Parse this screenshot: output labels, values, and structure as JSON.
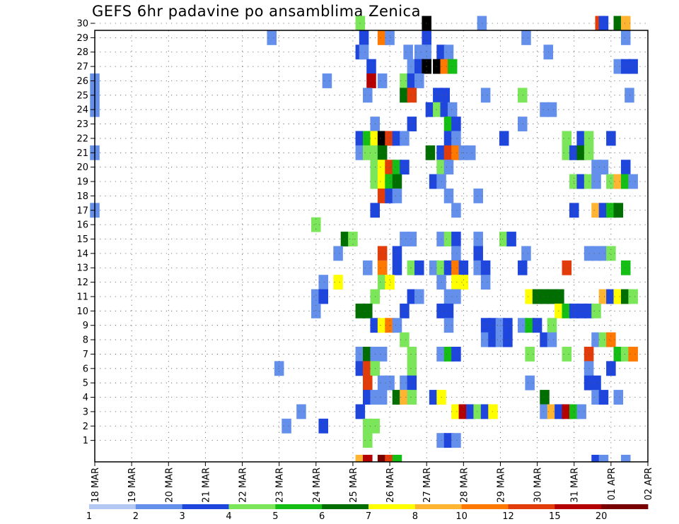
{
  "chart_data": {
    "type": "heatmap",
    "title": "GEFS 6hr padavine po ansamblima Zenica",
    "y_ticks": [
      "1",
      "2",
      "3",
      "4",
      "5",
      "6",
      "7",
      "8",
      "9",
      "10",
      "11",
      "12",
      "13",
      "14",
      "15",
      "16",
      "17",
      "18",
      "19",
      "20",
      "21",
      "22",
      "23",
      "24",
      "25",
      "26",
      "27",
      "28",
      "29",
      "30"
    ],
    "x_ticks": [
      "18 MAR",
      "19 MAR",
      "20 MAR",
      "21 MAR",
      "22 MAR",
      "23 MAR",
      "24 MAR",
      "25 MAR",
      "26 MAR",
      "27 MAR",
      "28 MAR",
      "29 MAR",
      "30 MAR",
      "31 MAR",
      "01 APR",
      "02 APR"
    ],
    "colorbar": {
      "labels": [
        "1",
        "2",
        "3",
        "4",
        "5",
        "6",
        "7",
        "8",
        "10",
        "12",
        "15",
        "20"
      ],
      "colors": [
        "#b4c8f4",
        "#6490ec",
        "#1e46dc",
        "#7ce65a",
        "#14be14",
        "#006e00",
        "#ffff00",
        "#ffb432",
        "#ff7800",
        "#e13c0a",
        "#b40000",
        "#780000"
      ]
    },
    "cells": [
      [
        25.2,
        30,
        3
      ],
      [
        27.0,
        30,
        12
      ],
      [
        28.5,
        30,
        1
      ],
      [
        31.7,
        30,
        9
      ],
      [
        31.8,
        30,
        2
      ],
      [
        32.2,
        30,
        5
      ],
      [
        32.4,
        30,
        7
      ],
      [
        22.8,
        29,
        1
      ],
      [
        25.3,
        29,
        2
      ],
      [
        25.8,
        29,
        8
      ],
      [
        26.0,
        29,
        1
      ],
      [
        27.0,
        29,
        2
      ],
      [
        29.7,
        29,
        1
      ],
      [
        32.4,
        29,
        1
      ],
      [
        25.2,
        28,
        2
      ],
      [
        25.3,
        28,
        1
      ],
      [
        26.5,
        28,
        1
      ],
      [
        26.8,
        28,
        1
      ],
      [
        27.0,
        28,
        1
      ],
      [
        27.4,
        28,
        2
      ],
      [
        27.6,
        28,
        1
      ],
      [
        30.3,
        28,
        1
      ],
      [
        25.5,
        27,
        2
      ],
      [
        26.6,
        27,
        1
      ],
      [
        26.8,
        27,
        2
      ],
      [
        27.0,
        27,
        12
      ],
      [
        27.3,
        27,
        12
      ],
      [
        27.5,
        27,
        8
      ],
      [
        27.7,
        27,
        4
      ],
      [
        32.2,
        27,
        1
      ],
      [
        32.4,
        27,
        2
      ],
      [
        32.6,
        27,
        2
      ],
      [
        18.0,
        26,
        1
      ],
      [
        24.3,
        26,
        1
      ],
      [
        25.5,
        26,
        10
      ],
      [
        25.8,
        26,
        1
      ],
      [
        26.4,
        26,
        3
      ],
      [
        26.6,
        26,
        2
      ],
      [
        26.8,
        26,
        1
      ],
      [
        18.0,
        25,
        1
      ],
      [
        25.4,
        25,
        1
      ],
      [
        26.4,
        25,
        5
      ],
      [
        26.6,
        25,
        9
      ],
      [
        27.3,
        25,
        2
      ],
      [
        27.5,
        25,
        2
      ],
      [
        28.6,
        25,
        1
      ],
      [
        29.6,
        25,
        3
      ],
      [
        32.5,
        25,
        1
      ],
      [
        18.0,
        24,
        1
      ],
      [
        27.1,
        24,
        2
      ],
      [
        27.3,
        24,
        3
      ],
      [
        27.5,
        24,
        2
      ],
      [
        27.7,
        24,
        1
      ],
      [
        30.2,
        24,
        1
      ],
      [
        30.4,
        24,
        1
      ],
      [
        25.6,
        23,
        1
      ],
      [
        26.6,
        23,
        2
      ],
      [
        27.6,
        23,
        4
      ],
      [
        27.8,
        23,
        2
      ],
      [
        29.6,
        23,
        1
      ],
      [
        25.2,
        22,
        2
      ],
      [
        25.4,
        22,
        4
      ],
      [
        25.6,
        22,
        6
      ],
      [
        25.8,
        22,
        12
      ],
      [
        26.0,
        22,
        9
      ],
      [
        26.2,
        22,
        2
      ],
      [
        26.4,
        22,
        1
      ],
      [
        27.6,
        22,
        2
      ],
      [
        27.8,
        22,
        1
      ],
      [
        29.1,
        22,
        2
      ],
      [
        30.8,
        22,
        3
      ],
      [
        31.2,
        22,
        2
      ],
      [
        31.4,
        22,
        3
      ],
      [
        32.0,
        22,
        2
      ],
      [
        18.0,
        21,
        1
      ],
      [
        25.2,
        21,
        1
      ],
      [
        25.4,
        21,
        3
      ],
      [
        25.6,
        21,
        3
      ],
      [
        25.8,
        21,
        5
      ],
      [
        27.1,
        21,
        5
      ],
      [
        27.4,
        21,
        2
      ],
      [
        27.6,
        21,
        9
      ],
      [
        27.8,
        21,
        8
      ],
      [
        28.0,
        21,
        1
      ],
      [
        28.2,
        21,
        1
      ],
      [
        30.8,
        21,
        3
      ],
      [
        31.0,
        21,
        2
      ],
      [
        31.2,
        21,
        5
      ],
      [
        31.4,
        21,
        3
      ],
      [
        25.6,
        20,
        3
      ],
      [
        25.8,
        20,
        6
      ],
      [
        26.0,
        20,
        9
      ],
      [
        26.2,
        20,
        4
      ],
      [
        26.4,
        20,
        2
      ],
      [
        27.4,
        20,
        3
      ],
      [
        27.6,
        20,
        1
      ],
      [
        31.6,
        20,
        1
      ],
      [
        31.8,
        20,
        1
      ],
      [
        32.4,
        20,
        2
      ],
      [
        25.6,
        19,
        3
      ],
      [
        25.8,
        19,
        6
      ],
      [
        26.0,
        19,
        4
      ],
      [
        26.2,
        19,
        5
      ],
      [
        27.2,
        19,
        2
      ],
      [
        27.4,
        19,
        1
      ],
      [
        31.0,
        19,
        3
      ],
      [
        31.2,
        19,
        2
      ],
      [
        31.4,
        19,
        3
      ],
      [
        31.6,
        19,
        1
      ],
      [
        32.0,
        19,
        3
      ],
      [
        32.2,
        19,
        7
      ],
      [
        32.4,
        19,
        4
      ],
      [
        32.6,
        19,
        1
      ],
      [
        25.8,
        18,
        9
      ],
      [
        26.0,
        18,
        2
      ],
      [
        26.2,
        18,
        1
      ],
      [
        27.6,
        18,
        1
      ],
      [
        28.4,
        18,
        1
      ],
      [
        18.0,
        17,
        1
      ],
      [
        25.6,
        17,
        2
      ],
      [
        27.8,
        17,
        1
      ],
      [
        31.0,
        17,
        2
      ],
      [
        31.6,
        17,
        7
      ],
      [
        31.8,
        17,
        2
      ],
      [
        32.0,
        17,
        4
      ],
      [
        32.2,
        17,
        5
      ],
      [
        24.0,
        16,
        3
      ],
      [
        24.8,
        15,
        5
      ],
      [
        25.0,
        15,
        3
      ],
      [
        26.4,
        15,
        1
      ],
      [
        26.6,
        15,
        1
      ],
      [
        27.4,
        15,
        1
      ],
      [
        27.6,
        15,
        3
      ],
      [
        27.8,
        15,
        2
      ],
      [
        28.4,
        15,
        1
      ],
      [
        29.1,
        15,
        3
      ],
      [
        29.3,
        15,
        2
      ],
      [
        24.6,
        14,
        1
      ],
      [
        25.8,
        14,
        9
      ],
      [
        26.2,
        14,
        2
      ],
      [
        27.8,
        14,
        1
      ],
      [
        28.4,
        14,
        2
      ],
      [
        29.7,
        14,
        1
      ],
      [
        31.4,
        14,
        1
      ],
      [
        31.6,
        14,
        1
      ],
      [
        31.8,
        14,
        1
      ],
      [
        32.0,
        14,
        3
      ],
      [
        25.4,
        13,
        1
      ],
      [
        25.8,
        13,
        1
      ],
      [
        26.2,
        13,
        2
      ],
      [
        27.6,
        13,
        3
      ],
      [
        27.8,
        13,
        2
      ],
      [
        25.8,
        13,
        8
      ],
      [
        26.6,
        13,
        3
      ],
      [
        26.8,
        13,
        2
      ],
      [
        27.2,
        13,
        1
      ],
      [
        27.4,
        13,
        3
      ],
      [
        27.6,
        13,
        2
      ],
      [
        27.8,
        13,
        8
      ],
      [
        28.0,
        13,
        2
      ],
      [
        28.4,
        13,
        1
      ],
      [
        28.6,
        13,
        2
      ],
      [
        29.6,
        13,
        2
      ],
      [
        30.8,
        13,
        9
      ],
      [
        32.4,
        13,
        4
      ],
      [
        24.2,
        12,
        1
      ],
      [
        24.6,
        12,
        6
      ],
      [
        25.8,
        12,
        3
      ],
      [
        26.0,
        12,
        6
      ],
      [
        27.4,
        12,
        1
      ],
      [
        27.8,
        12,
        6
      ],
      [
        28.0,
        12,
        6
      ],
      [
        28.6,
        12,
        1
      ],
      [
        24.0,
        11,
        1
      ],
      [
        24.2,
        11,
        2
      ],
      [
        25.6,
        11,
        3
      ],
      [
        26.6,
        11,
        2
      ],
      [
        26.8,
        11,
        1
      ],
      [
        27.6,
        11,
        1
      ],
      [
        27.8,
        11,
        1
      ],
      [
        29.8,
        11,
        6
      ],
      [
        30.0,
        11,
        5
      ],
      [
        30.2,
        11,
        5
      ],
      [
        30.4,
        11,
        5
      ],
      [
        30.6,
        11,
        5
      ],
      [
        31.8,
        11,
        7
      ],
      [
        32.0,
        11,
        2
      ],
      [
        32.2,
        11,
        6
      ],
      [
        32.4,
        11,
        5
      ],
      [
        32.6,
        11,
        3
      ],
      [
        24.0,
        10,
        1
      ],
      [
        25.2,
        10,
        5
      ],
      [
        25.4,
        10,
        5
      ],
      [
        26.4,
        10,
        2
      ],
      [
        27.4,
        10,
        2
      ],
      [
        27.6,
        10,
        2
      ],
      [
        30.6,
        10,
        6
      ],
      [
        30.8,
        10,
        4
      ],
      [
        31.0,
        10,
        2
      ],
      [
        31.2,
        10,
        2
      ],
      [
        31.4,
        10,
        2
      ],
      [
        31.6,
        10,
        3
      ],
      [
        25.6,
        9,
        2
      ],
      [
        25.8,
        9,
        6
      ],
      [
        26.0,
        9,
        8
      ],
      [
        26.2,
        9,
        1
      ],
      [
        27.6,
        9,
        1
      ],
      [
        28.6,
        9,
        2
      ],
      [
        28.8,
        9,
        2
      ],
      [
        29.0,
        9,
        1
      ],
      [
        29.2,
        9,
        2
      ],
      [
        29.6,
        9,
        1
      ],
      [
        29.8,
        9,
        4
      ],
      [
        30.0,
        9,
        2
      ],
      [
        30.4,
        9,
        3
      ],
      [
        26.4,
        8,
        3
      ],
      [
        28.6,
        8,
        1
      ],
      [
        28.8,
        8,
        2
      ],
      [
        29.0,
        8,
        1
      ],
      [
        29.2,
        8,
        2
      ],
      [
        30.2,
        8,
        2
      ],
      [
        30.4,
        8,
        1
      ],
      [
        31.6,
        8,
        1
      ],
      [
        31.8,
        8,
        3
      ],
      [
        32.0,
        8,
        8
      ],
      [
        25.2,
        7,
        1
      ],
      [
        25.4,
        7,
        5
      ],
      [
        25.6,
        7,
        1
      ],
      [
        25.8,
        7,
        1
      ],
      [
        26.6,
        7,
        3
      ],
      [
        27.4,
        7,
        1
      ],
      [
        27.6,
        7,
        4
      ],
      [
        27.8,
        7,
        2
      ],
      [
        29.8,
        7,
        3
      ],
      [
        30.8,
        7,
        3
      ],
      [
        31.4,
        7,
        9
      ],
      [
        32.2,
        7,
        4
      ],
      [
        32.4,
        7,
        3
      ],
      [
        32.6,
        7,
        8
      ],
      [
        23.0,
        6,
        1
      ],
      [
        25.2,
        6,
        2
      ],
      [
        25.4,
        6,
        9
      ],
      [
        25.6,
        6,
        3
      ],
      [
        26.6,
        6,
        3
      ],
      [
        31.4,
        6,
        1
      ],
      [
        32.0,
        6,
        2
      ],
      [
        25.4,
        5,
        9
      ],
      [
        25.8,
        5,
        1
      ],
      [
        26.0,
        5,
        1
      ],
      [
        26.4,
        5,
        1
      ],
      [
        26.6,
        5,
        2
      ],
      [
        29.8,
        5,
        1
      ],
      [
        31.4,
        5,
        2
      ],
      [
        31.6,
        5,
        2
      ],
      [
        25.4,
        4,
        2
      ],
      [
        25.6,
        4,
        1
      ],
      [
        25.8,
        4,
        1
      ],
      [
        26.2,
        4,
        5
      ],
      [
        26.4,
        4,
        7
      ],
      [
        26.6,
        4,
        3
      ],
      [
        27.2,
        4,
        2
      ],
      [
        27.4,
        4,
        6
      ],
      [
        30.2,
        4,
        5
      ],
      [
        31.6,
        4,
        1
      ],
      [
        31.8,
        4,
        2
      ],
      [
        32.2,
        4,
        1
      ],
      [
        23.6,
        3,
        1
      ],
      [
        25.2,
        3,
        2
      ],
      [
        27.8,
        3,
        6
      ],
      [
        28.0,
        3,
        10
      ],
      [
        28.2,
        3,
        2
      ],
      [
        28.4,
        3,
        3
      ],
      [
        28.6,
        3,
        2
      ],
      [
        28.8,
        3,
        6
      ],
      [
        30.2,
        3,
        1
      ],
      [
        30.4,
        3,
        7
      ],
      [
        30.6,
        3,
        2
      ],
      [
        30.8,
        3,
        10
      ],
      [
        31.0,
        3,
        4
      ],
      [
        31.2,
        3,
        1
      ],
      [
        23.2,
        2,
        1
      ],
      [
        24.2,
        2,
        2
      ],
      [
        25.4,
        2,
        3
      ],
      [
        25.6,
        2,
        3
      ],
      [
        25.4,
        1,
        3
      ],
      [
        27.4,
        1,
        1
      ],
      [
        27.6,
        1,
        2
      ],
      [
        27.8,
        1,
        1
      ],
      [
        25.2,
        0,
        7
      ],
      [
        25.4,
        0,
        10
      ],
      [
        25.8,
        0,
        11
      ],
      [
        26.0,
        0,
        9
      ],
      [
        26.2,
        0,
        4
      ],
      [
        31.6,
        0,
        2
      ],
      [
        31.8,
        0,
        1
      ],
      [
        32.4,
        0,
        1
      ]
    ]
  }
}
